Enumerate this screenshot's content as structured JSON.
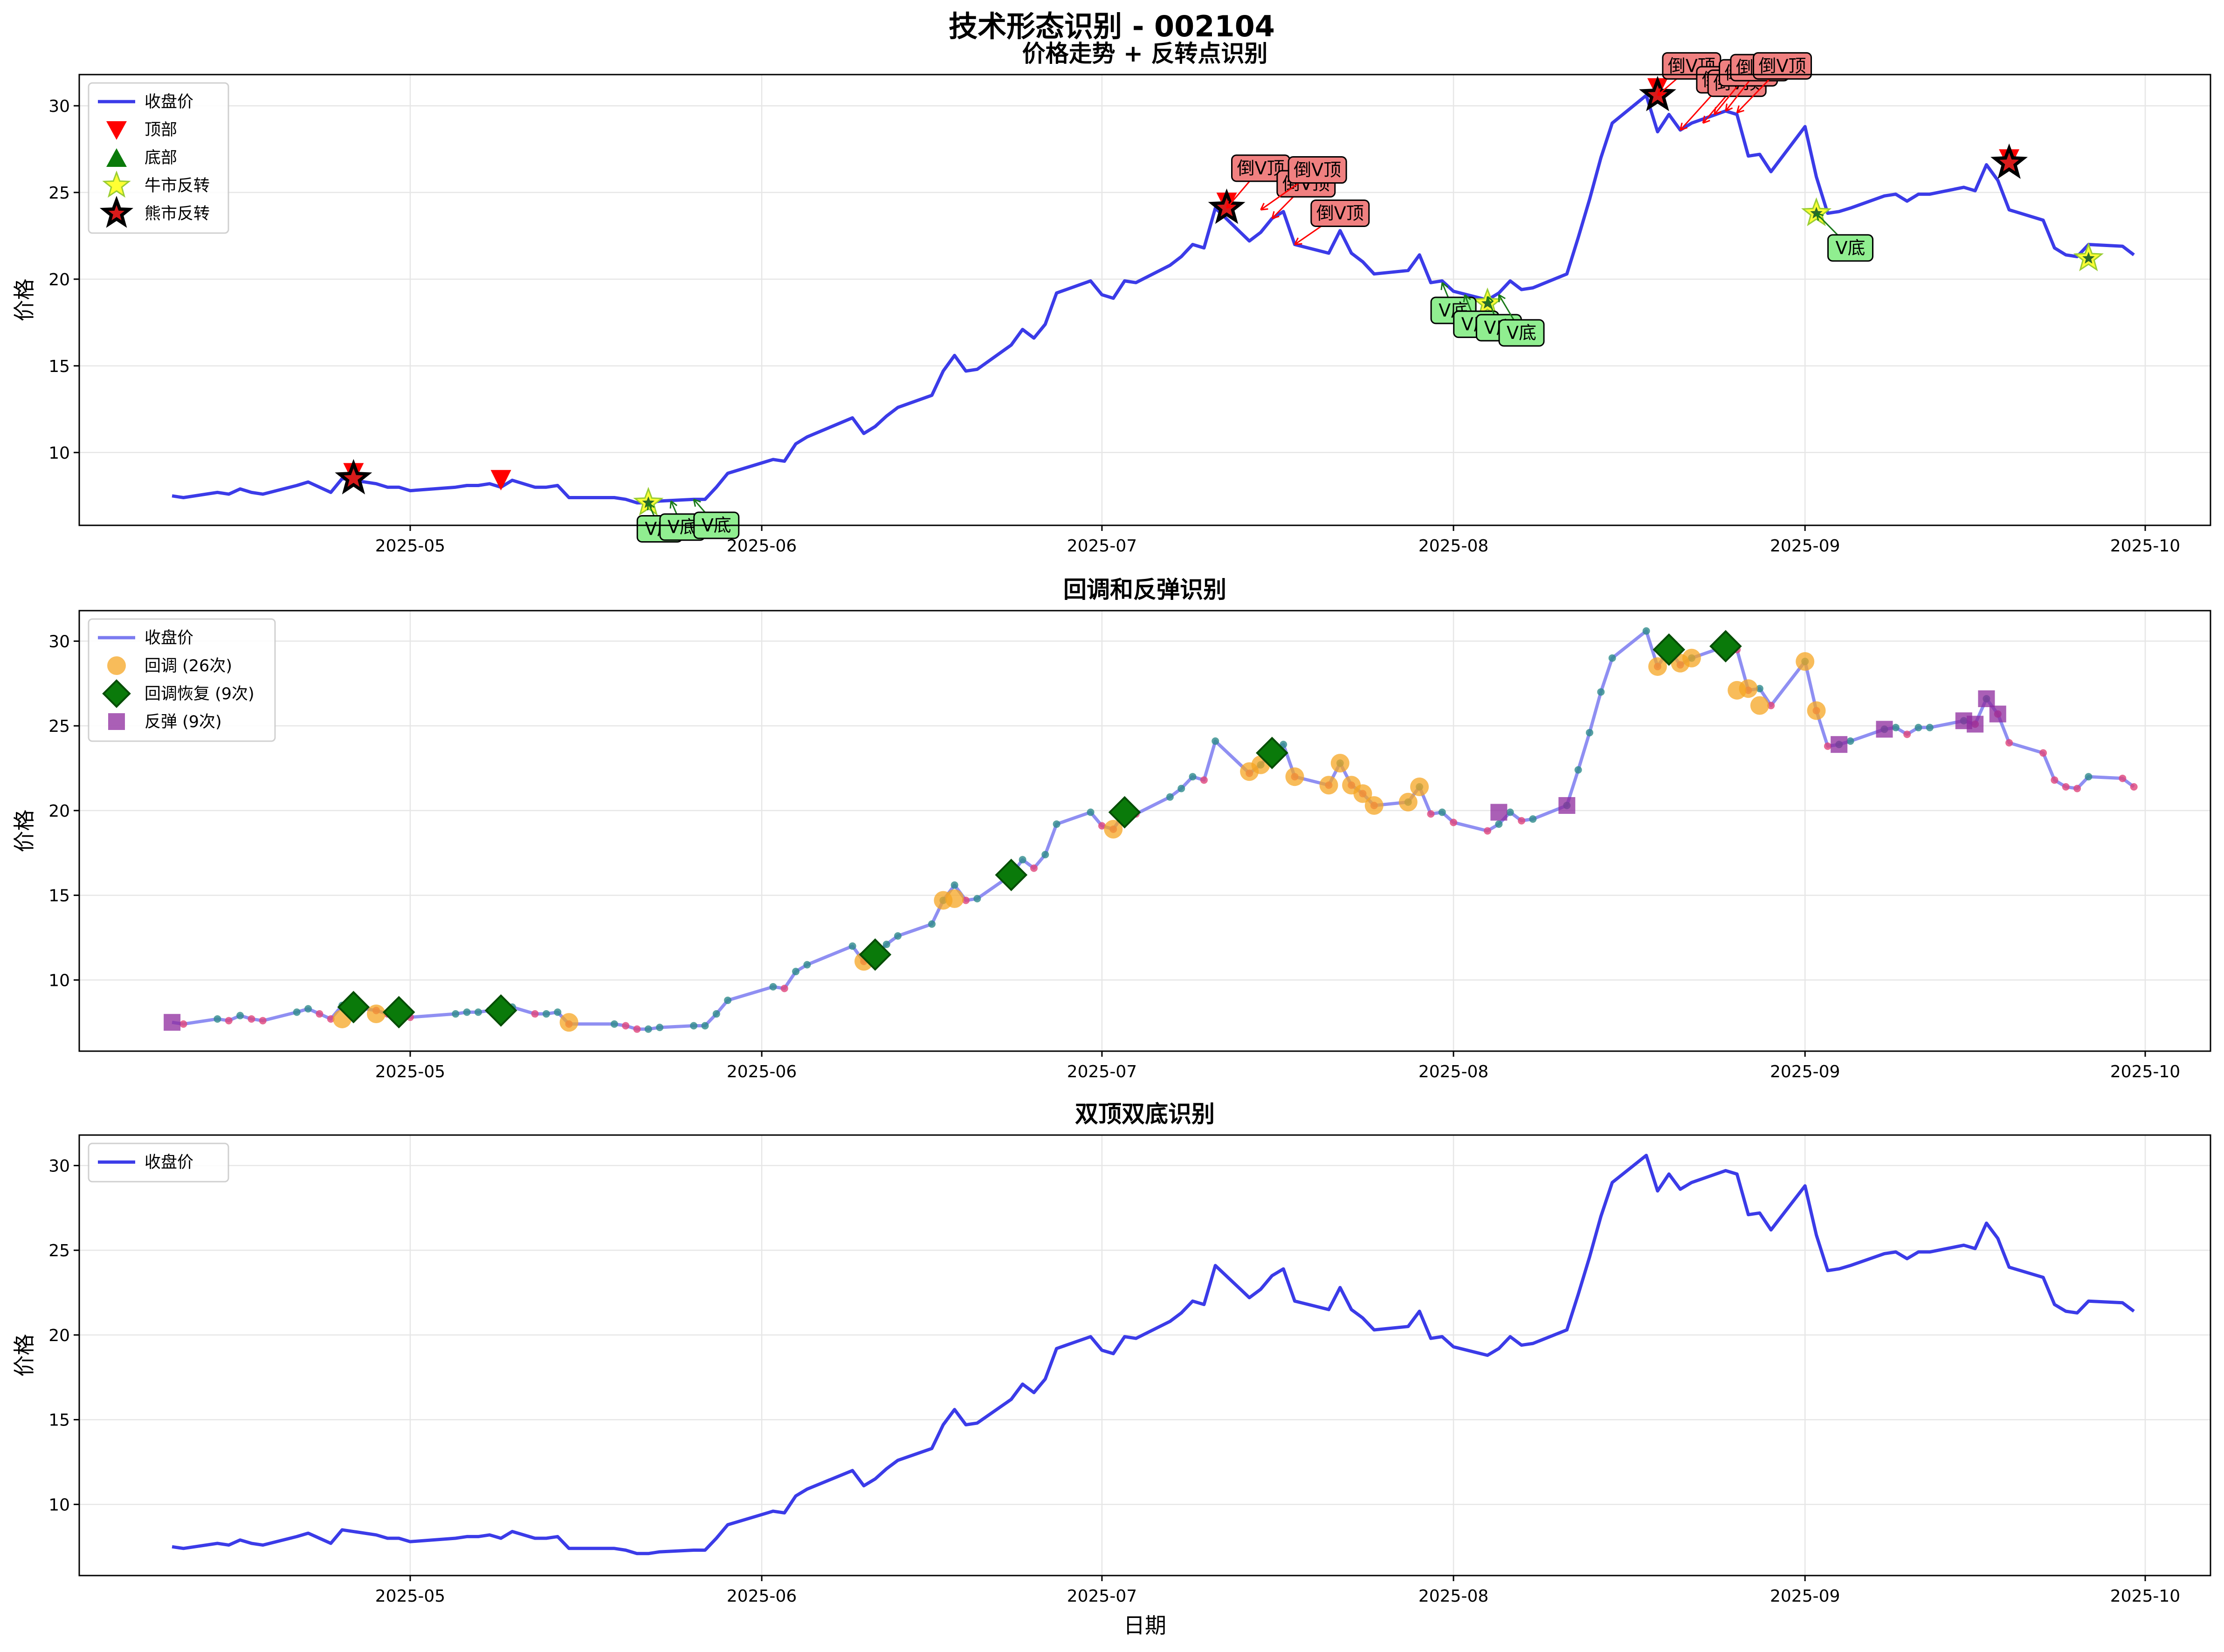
{
  "figure": {
    "title": "技术形态识别 - 002104"
  },
  "chart_data": [
    {
      "type": "line",
      "title": "价格走势 + 反转点识别",
      "ylabel": "价格",
      "xlabel": "",
      "ylim": [
        5.8,
        31.8
      ],
      "yticks": [
        10,
        15,
        20,
        25,
        30
      ],
      "xticks": [
        "2025-05",
        "2025-06",
        "2025-07",
        "2025-08",
        "2025-09",
        "2025-10"
      ],
      "grid": true,
      "legend": {
        "position": "top-left",
        "entries": [
          "收盘价",
          "顶部",
          "底部",
          "牛市反转",
          "熊市反转"
        ]
      },
      "series": [
        {
          "name": "收盘价",
          "color": "#3b3be8"
        }
      ],
      "tops": [
        [
          "2025-04-26",
          8.8
        ],
        [
          "2025-05-09",
          8.4
        ],
        [
          "2025-07-12",
          24.4
        ],
        [
          "2025-08-19",
          31.0
        ],
        [
          "2025-09-19",
          26.9
        ]
      ],
      "bottoms": [],
      "bull_reversals": [
        [
          "2025-05-22",
          7.1
        ],
        [
          "2025-08-04",
          18.6
        ],
        [
          "2025-09-02",
          23.8
        ],
        [
          "2025-09-26",
          21.2
        ]
      ],
      "bear_reversals": [
        [
          "2025-04-26",
          8.5
        ],
        [
          "2025-07-12",
          24.1
        ],
        [
          "2025-08-19",
          30.6
        ],
        [
          "2025-09-19",
          26.7
        ]
      ],
      "annotations": [
        {
          "text": "V底",
          "target": [
            "2025-05-22",
            7.1
          ],
          "box": [
            "2025-05-23",
            5.6
          ],
          "kind": "bottom"
        },
        {
          "text": "V底",
          "target": [
            "2025-05-24",
            7.2
          ],
          "box": [
            "2025-05-25",
            5.7
          ],
          "kind": "bottom"
        },
        {
          "text": "V底",
          "target": [
            "2025-05-26",
            7.3
          ],
          "box": [
            "2025-05-28",
            5.8
          ],
          "kind": "bottom"
        },
        {
          "text": "倒V顶",
          "target": [
            "2025-07-12",
            24.1
          ],
          "box": [
            "2025-07-15",
            26.4
          ],
          "kind": "top"
        },
        {
          "text": "倒V顶",
          "target": [
            "2025-07-16",
            23.5
          ],
          "box": [
            "2025-07-19",
            25.5
          ],
          "kind": "top"
        },
        {
          "text": "倒V顶",
          "target": [
            "2025-07-15",
            24.0
          ],
          "box": [
            "2025-07-20",
            26.3
          ],
          "kind": "top"
        },
        {
          "text": "倒V顶",
          "target": [
            "2025-07-18",
            22.0
          ],
          "box": [
            "2025-07-22",
            23.8
          ],
          "kind": "top"
        },
        {
          "text": "V底",
          "target": [
            "2025-07-31",
            19.8
          ],
          "box": [
            "2025-08-01",
            18.2
          ],
          "kind": "bottom"
        },
        {
          "text": "V底",
          "target": [
            "2025-08-02",
            19.1
          ],
          "box": [
            "2025-08-03",
            17.4
          ],
          "kind": "bottom"
        },
        {
          "text": "V底",
          "target": [
            "2025-08-04",
            19.0
          ],
          "box": [
            "2025-08-05",
            17.2
          ],
          "kind": "bottom"
        },
        {
          "text": "V底",
          "target": [
            "2025-08-05",
            19.1
          ],
          "box": [
            "2025-08-07",
            16.9
          ],
          "kind": "bottom"
        },
        {
          "text": "倒V顶",
          "target": [
            "2025-08-19",
            30.6
          ],
          "box": [
            "2025-08-22",
            32.3
          ],
          "kind": "top"
        },
        {
          "text": "倒V顶",
          "target": [
            "2025-08-21",
            28.6
          ],
          "box": [
            "2025-08-25",
            31.5
          ],
          "kind": "top"
        },
        {
          "text": "倒V顶",
          "target": [
            "2025-08-23",
            29.0
          ],
          "box": [
            "2025-08-26",
            31.3
          ],
          "kind": "top"
        },
        {
          "text": "倒V顶",
          "target": [
            "2025-08-24",
            29.5
          ],
          "box": [
            "2025-08-27",
            31.9
          ],
          "kind": "top"
        },
        {
          "text": "倒V顶",
          "target": [
            "2025-08-25",
            29.7
          ],
          "box": [
            "2025-08-28",
            32.2
          ],
          "kind": "top"
        },
        {
          "text": "倒V顶",
          "target": [
            "2025-08-26",
            29.6
          ],
          "box": [
            "2025-08-30",
            32.3
          ],
          "kind": "top"
        },
        {
          "text": "V底",
          "target": [
            "2025-09-02",
            23.8
          ],
          "box": [
            "2025-09-05",
            21.8
          ],
          "kind": "bottom"
        }
      ]
    },
    {
      "type": "line",
      "title": "回调和反弹识别",
      "ylabel": "价格",
      "xlabel": "",
      "ylim": [
        5.8,
        31.8
      ],
      "yticks": [
        10,
        15,
        20,
        25,
        30
      ],
      "xticks": [
        "2025-05",
        "2025-06",
        "2025-07",
        "2025-08",
        "2025-09",
        "2025-10"
      ],
      "grid": true,
      "legend": {
        "position": "top-left",
        "entries": [
          "收盘价",
          "回调 (26次)",
          "回调恢复 (9次)",
          "反弹 (9次)"
        ]
      },
      "series": [
        {
          "name": "收盘价",
          "color": "#7b7bf0"
        }
      ],
      "pullbacks": [
        [
          "2025-04-25",
          7.7
        ],
        [
          "2025-04-28",
          8.0
        ],
        [
          "2025-04-30",
          8.0
        ],
        [
          "2025-05-15",
          7.5
        ],
        [
          "2025-06-10",
          11.1
        ],
        [
          "2025-06-17",
          14.7
        ],
        [
          "2025-06-18",
          14.8
        ],
        [
          "2025-07-02",
          18.9
        ],
        [
          "2025-07-14",
          22.3
        ],
        [
          "2025-07-15",
          22.7
        ],
        [
          "2025-07-18",
          22.0
        ],
        [
          "2025-07-21",
          21.5
        ],
        [
          "2025-07-22",
          22.8
        ],
        [
          "2025-07-23",
          21.5
        ],
        [
          "2025-07-24",
          21.0
        ],
        [
          "2025-07-25",
          20.3
        ],
        [
          "2025-07-28",
          20.5
        ],
        [
          "2025-07-29",
          21.4
        ],
        [
          "2025-08-19",
          28.5
        ],
        [
          "2025-08-21",
          28.7
        ],
        [
          "2025-08-22",
          29.0
        ],
        [
          "2025-08-26",
          27.1
        ],
        [
          "2025-08-27",
          27.2
        ],
        [
          "2025-08-28",
          26.2
        ],
        [
          "2025-09-01",
          28.8
        ],
        [
          "2025-09-02",
          25.9
        ]
      ],
      "recoveries": [
        [
          "2025-04-26",
          8.4
        ],
        [
          "2025-04-30",
          8.1
        ],
        [
          "2025-05-09",
          8.2
        ],
        [
          "2025-06-11",
          11.5
        ],
        [
          "2025-06-23",
          16.2
        ],
        [
          "2025-07-03",
          19.9
        ],
        [
          "2025-07-16",
          23.4
        ],
        [
          "2025-08-20",
          29.5
        ],
        [
          "2025-08-25",
          29.7
        ]
      ],
      "rebounds": [
        [
          "2025-04-10",
          7.5
        ],
        [
          "2025-08-05",
          19.9
        ],
        [
          "2025-08-11",
          20.3
        ],
        [
          "2025-09-04",
          23.9
        ],
        [
          "2025-09-08",
          24.8
        ],
        [
          "2025-09-15",
          25.3
        ],
        [
          "2025-09-16",
          25.1
        ],
        [
          "2025-09-17",
          26.6
        ],
        [
          "2025-09-18",
          25.7
        ]
      ]
    },
    {
      "type": "line",
      "title": "双顶双底识别",
      "ylabel": "价格",
      "xlabel": "日期",
      "ylim": [
        5.8,
        31.8
      ],
      "yticks": [
        10,
        15,
        20,
        25,
        30
      ],
      "xticks": [
        "2025-05",
        "2025-06",
        "2025-07",
        "2025-08",
        "2025-09",
        "2025-10"
      ],
      "grid": true,
      "legend": {
        "position": "top-left",
        "entries": [
          "收盘价"
        ]
      },
      "series": [
        {
          "name": "收盘价",
          "color": "#3b3be8"
        }
      ]
    }
  ],
  "price_series": {
    "name": "收盘价",
    "points": [
      [
        "2025-04-10",
        7.5
      ],
      [
        "2025-04-11",
        7.4
      ],
      [
        "2025-04-14",
        7.7
      ],
      [
        "2025-04-15",
        7.6
      ],
      [
        "2025-04-16",
        7.9
      ],
      [
        "2025-04-17",
        7.7
      ],
      [
        "2025-04-18",
        7.6
      ],
      [
        "2025-04-21",
        8.1
      ],
      [
        "2025-04-22",
        8.3
      ],
      [
        "2025-04-23",
        8.0
      ],
      [
        "2025-04-24",
        7.7
      ],
      [
        "2025-04-25",
        8.5
      ],
      [
        "2025-04-28",
        8.2
      ],
      [
        "2025-04-29",
        8.0
      ],
      [
        "2025-04-30",
        8.0
      ],
      [
        "2025-05-01",
        7.8
      ],
      [
        "2025-05-05",
        8.0
      ],
      [
        "2025-05-06",
        8.1
      ],
      [
        "2025-05-07",
        8.1
      ],
      [
        "2025-05-08",
        8.2
      ],
      [
        "2025-05-09",
        8.0
      ],
      [
        "2025-05-10",
        8.4
      ],
      [
        "2025-05-12",
        8.0
      ],
      [
        "2025-05-13",
        8.0
      ],
      [
        "2025-05-14",
        8.1
      ],
      [
        "2025-05-15",
        7.4
      ],
      [
        "2025-05-19",
        7.4
      ],
      [
        "2025-05-20",
        7.3
      ],
      [
        "2025-05-21",
        7.1
      ],
      [
        "2025-05-22",
        7.1
      ],
      [
        "2025-05-23",
        7.2
      ],
      [
        "2025-05-26",
        7.3
      ],
      [
        "2025-05-27",
        7.3
      ],
      [
        "2025-05-28",
        8.0
      ],
      [
        "2025-05-29",
        8.8
      ],
      [
        "2025-06-02",
        9.6
      ],
      [
        "2025-06-03",
        9.5
      ],
      [
        "2025-06-04",
        10.5
      ],
      [
        "2025-06-05",
        10.9
      ],
      [
        "2025-06-09",
        12.0
      ],
      [
        "2025-06-10",
        11.1
      ],
      [
        "2025-06-11",
        11.5
      ],
      [
        "2025-06-12",
        12.1
      ],
      [
        "2025-06-13",
        12.6
      ],
      [
        "2025-06-16",
        13.3
      ],
      [
        "2025-06-17",
        14.7
      ],
      [
        "2025-06-18",
        15.6
      ],
      [
        "2025-06-19",
        14.7
      ],
      [
        "2025-06-20",
        14.8
      ],
      [
        "2025-06-23",
        16.2
      ],
      [
        "2025-06-24",
        17.1
      ],
      [
        "2025-06-25",
        16.6
      ],
      [
        "2025-06-26",
        17.4
      ],
      [
        "2025-06-27",
        19.2
      ],
      [
        "2025-06-30",
        19.9
      ],
      [
        "2025-07-01",
        19.1
      ],
      [
        "2025-07-02",
        18.9
      ],
      [
        "2025-07-03",
        19.9
      ],
      [
        "2025-07-04",
        19.8
      ],
      [
        "2025-07-07",
        20.8
      ],
      [
        "2025-07-08",
        21.3
      ],
      [
        "2025-07-09",
        22.0
      ],
      [
        "2025-07-10",
        21.8
      ],
      [
        "2025-07-11",
        24.1
      ],
      [
        "2025-07-14",
        22.2
      ],
      [
        "2025-07-15",
        22.7
      ],
      [
        "2025-07-16",
        23.5
      ],
      [
        "2025-07-17",
        23.9
      ],
      [
        "2025-07-18",
        22.0
      ],
      [
        "2025-07-21",
        21.5
      ],
      [
        "2025-07-22",
        22.8
      ],
      [
        "2025-07-23",
        21.5
      ],
      [
        "2025-07-24",
        21.0
      ],
      [
        "2025-07-25",
        20.3
      ],
      [
        "2025-07-28",
        20.5
      ],
      [
        "2025-07-29",
        21.4
      ],
      [
        "2025-07-30",
        19.8
      ],
      [
        "2025-07-31",
        19.9
      ],
      [
        "2025-08-01",
        19.3
      ],
      [
        "2025-08-04",
        18.8
      ],
      [
        "2025-08-05",
        19.2
      ],
      [
        "2025-08-06",
        19.9
      ],
      [
        "2025-08-07",
        19.4
      ],
      [
        "2025-08-08",
        19.5
      ],
      [
        "2025-08-11",
        20.3
      ],
      [
        "2025-08-12",
        22.4
      ],
      [
        "2025-08-13",
        24.6
      ],
      [
        "2025-08-14",
        27.0
      ],
      [
        "2025-08-15",
        29.0
      ],
      [
        "2025-08-18",
        30.6
      ],
      [
        "2025-08-19",
        28.5
      ],
      [
        "2025-08-20",
        29.5
      ],
      [
        "2025-08-21",
        28.6
      ],
      [
        "2025-08-22",
        29.0
      ],
      [
        "2025-08-25",
        29.7
      ],
      [
        "2025-08-26",
        29.5
      ],
      [
        "2025-08-27",
        27.1
      ],
      [
        "2025-08-28",
        27.2
      ],
      [
        "2025-08-29",
        26.2
      ],
      [
        "2025-09-01",
        28.8
      ],
      [
        "2025-09-02",
        25.9
      ],
      [
        "2025-09-03",
        23.8
      ],
      [
        "2025-09-04",
        23.9
      ],
      [
        "2025-09-05",
        24.1
      ],
      [
        "2025-09-08",
        24.8
      ],
      [
        "2025-09-09",
        24.9
      ],
      [
        "2025-09-10",
        24.5
      ],
      [
        "2025-09-11",
        24.9
      ],
      [
        "2025-09-12",
        24.9
      ],
      [
        "2025-09-15",
        25.3
      ],
      [
        "2025-09-16",
        25.1
      ],
      [
        "2025-09-17",
        26.6
      ],
      [
        "2025-09-18",
        25.7
      ],
      [
        "2025-09-19",
        24.0
      ],
      [
        "2025-09-22",
        23.4
      ],
      [
        "2025-09-23",
        21.8
      ],
      [
        "2025-09-24",
        21.4
      ],
      [
        "2025-09-25",
        21.3
      ],
      [
        "2025-09-26",
        22.0
      ],
      [
        "2025-09-29",
        21.9
      ],
      [
        "2025-09-30",
        21.4
      ]
    ]
  }
}
